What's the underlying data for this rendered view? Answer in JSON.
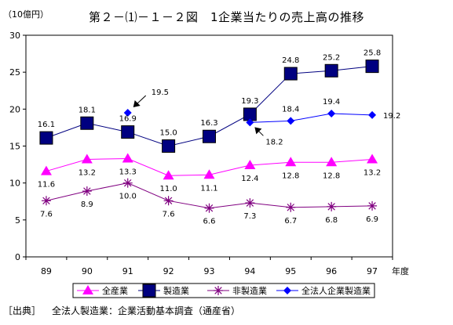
{
  "chart_data": {
    "type": "line",
    "title": "第２－⑴－１－２図　1企業当たりの売上高の推移",
    "unit_label": "（10億円）",
    "xlabel": "年度",
    "ylabel": "",
    "ylim": [
      0,
      30
    ],
    "yticks": [
      "0",
      "5",
      "10",
      "15",
      "20",
      "25",
      "30"
    ],
    "grid": false,
    "legend_position": "bottom",
    "categories": [
      "89",
      "90",
      "91",
      "92",
      "93",
      "94",
      "95",
      "96",
      "97"
    ],
    "series": [
      {
        "name": "全産業",
        "marker": "triangle",
        "color": "#ff00ff",
        "values": [
          11.6,
          13.2,
          13.3,
          11.0,
          11.1,
          12.4,
          12.8,
          12.8,
          13.2
        ],
        "labels": [
          "11.6",
          "13.2",
          "13.3",
          "11.0",
          "11.1",
          "12.4",
          "12.8",
          "12.8",
          "13.2"
        ]
      },
      {
        "name": "製造業",
        "marker": "square",
        "color": "#000080",
        "values": [
          16.1,
          18.1,
          16.9,
          15.0,
          16.3,
          19.3,
          24.8,
          25.2,
          25.8
        ],
        "labels": [
          "16.1",
          "18.1",
          "16.9",
          "15.0",
          "16.3",
          "19.3",
          "24.8",
          "25.2",
          "25.8"
        ]
      },
      {
        "name": "非製造業",
        "marker": "asterisk",
        "color": "#800080",
        "values": [
          7.6,
          8.9,
          10.0,
          7.6,
          6.6,
          7.3,
          6.7,
          6.8,
          6.9
        ],
        "labels": [
          "7.6",
          "8.9",
          "10.0",
          "7.6",
          "6.6",
          "7.3",
          "6.7",
          "6.8",
          "6.9"
        ]
      },
      {
        "name": "全法人企業製造業",
        "marker": "diamond",
        "color": "#0000ff",
        "values": [
          null,
          null,
          19.5,
          null,
          null,
          18.2,
          18.4,
          19.4,
          19.2
        ],
        "labels": [
          "",
          "",
          "19.5",
          "",
          "",
          "18.2",
          "18.4",
          "19.4",
          "19.2"
        ]
      }
    ]
  },
  "source": {
    "prefix": "［出典］",
    "text": "全法人製造業：企業活動基本調査（通産省）"
  }
}
